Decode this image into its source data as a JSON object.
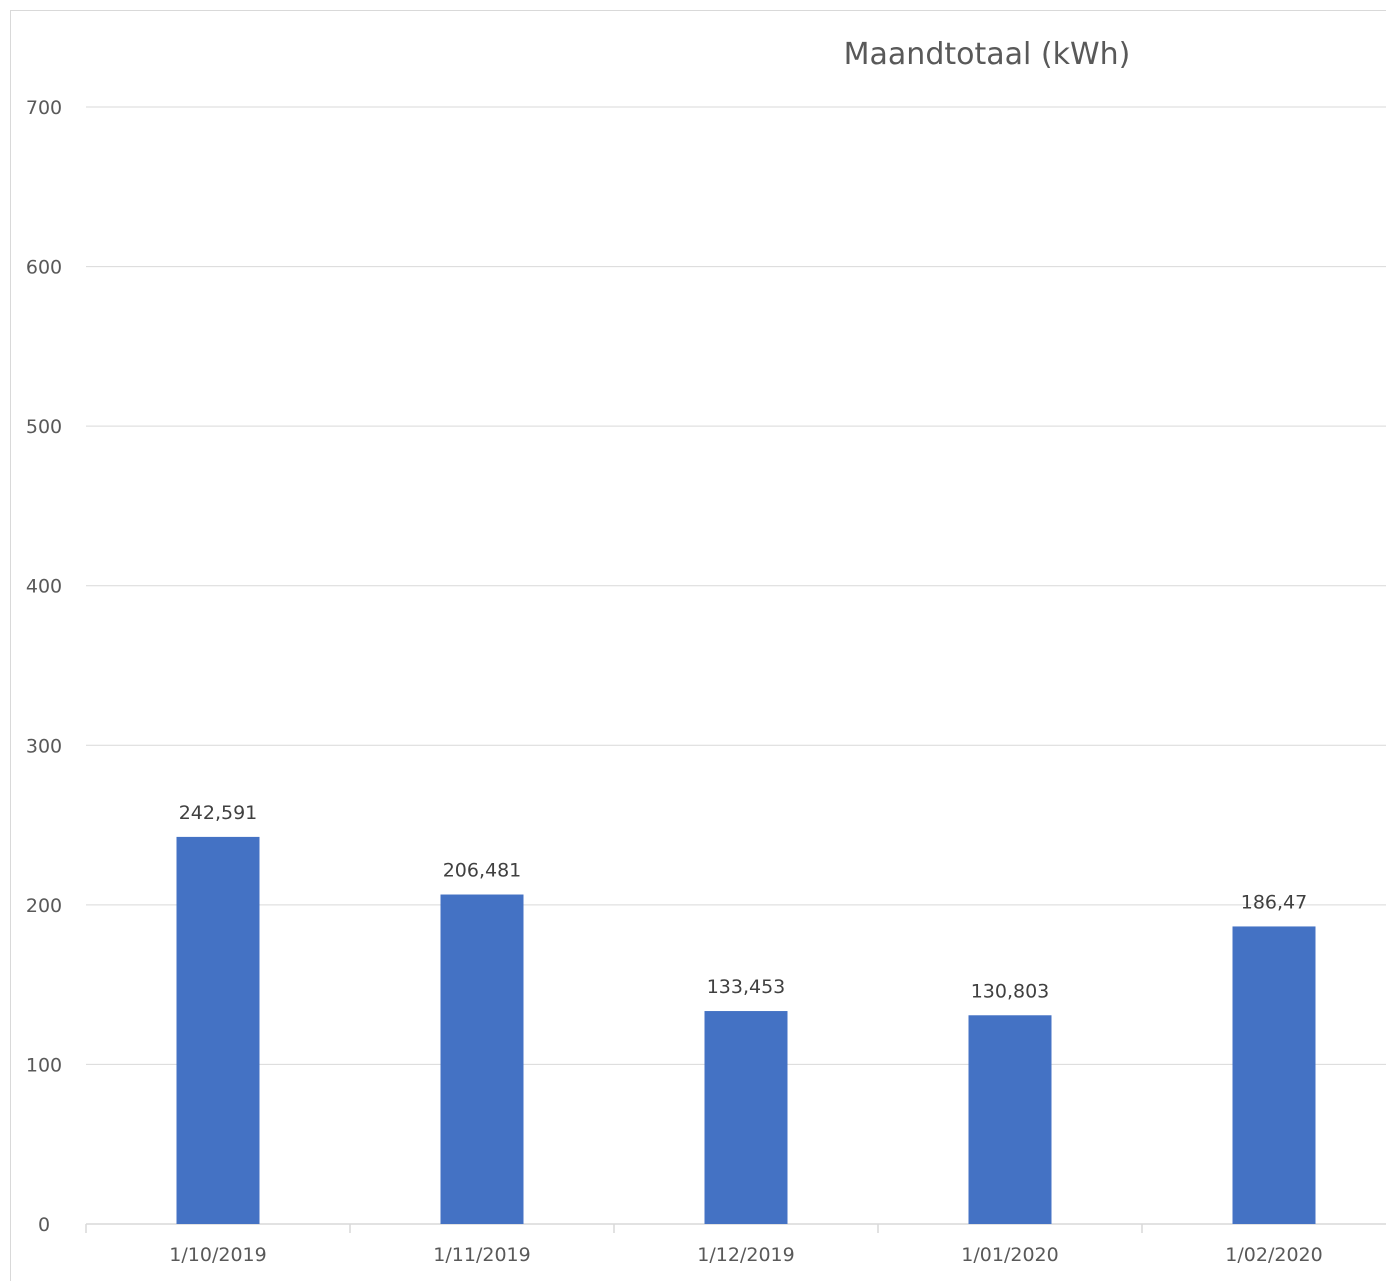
{
  "chart_data": {
    "type": "bar",
    "title": "Maandtotaal (kWh)",
    "categories": [
      "1/10/2019",
      "1/11/2019",
      "1/12/2019",
      "1/01/2020",
      "1/02/2020"
    ],
    "values": [
      242.591,
      206.481,
      133.453,
      130.803,
      186.47
    ],
    "data_labels": [
      "242,591",
      "206,481",
      "133,453",
      "130,803",
      "186,47"
    ],
    "yticks": [
      "0",
      "100",
      "200",
      "300",
      "400",
      "500",
      "600",
      "700"
    ],
    "ylim": [
      0,
      700
    ],
    "bar_color": "#4472c4",
    "grid": true,
    "legend": "none"
  }
}
